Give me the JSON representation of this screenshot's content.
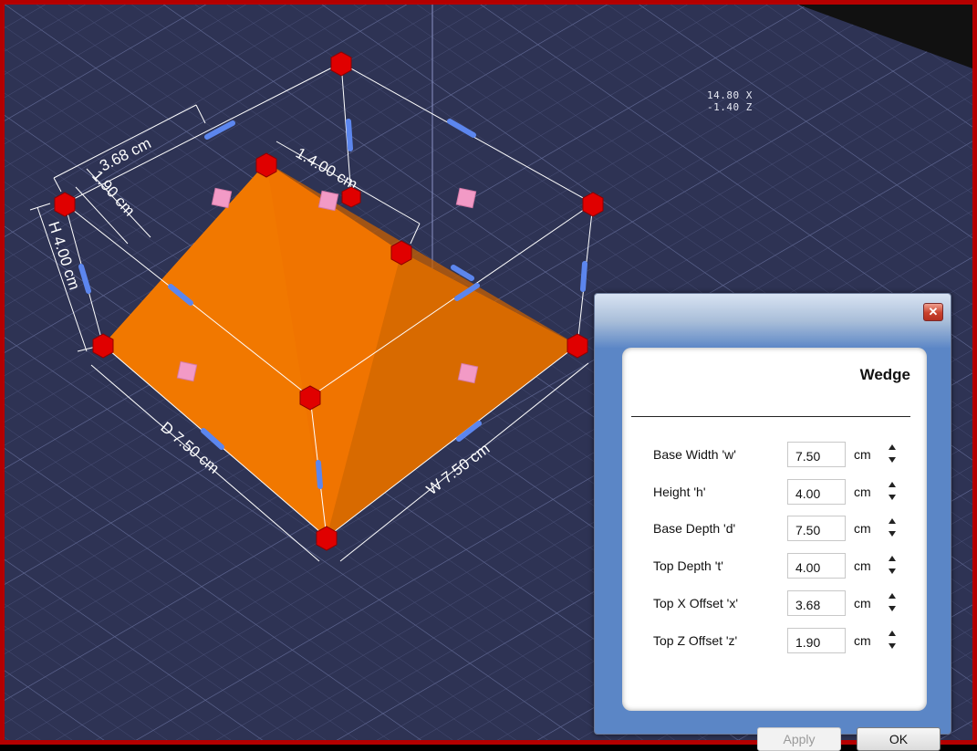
{
  "viewport": {
    "readout": {
      "line1": "14.80 X",
      "line2": "-1.40 Z"
    },
    "dimensions": {
      "top_x_offset": "3.68 cm",
      "top_z_offset": "1.90 cm",
      "top_depth": "1.4.00 cm",
      "height": "H 4.00 cm",
      "depth": "D 7.50 cm",
      "width": "W 7.50 cm"
    },
    "colors": {
      "background": "#2e3354",
      "grid": "#4a5078",
      "wedge_light": "#f07400",
      "wedge_dark": "#d16400",
      "handle": "#e00000",
      "face_handle": "#f29ac6",
      "edge_handle": "#5c86ee"
    }
  },
  "dialog": {
    "close_label": "✕",
    "title": "Wedge",
    "unit": "cm",
    "params": [
      {
        "label": "Base Width 'w'",
        "value": "7.50"
      },
      {
        "label": "Height 'h'",
        "value": "4.00"
      },
      {
        "label": "Base Depth 'd'",
        "value": "7.50"
      },
      {
        "label": "Top Depth 't'",
        "value": "4.00"
      },
      {
        "label": "Top X Offset 'x'",
        "value": "3.68"
      },
      {
        "label": "Top Z Offset 'z'",
        "value": "1.90"
      }
    ],
    "apply_label": "Apply",
    "ok_label": "OK"
  }
}
